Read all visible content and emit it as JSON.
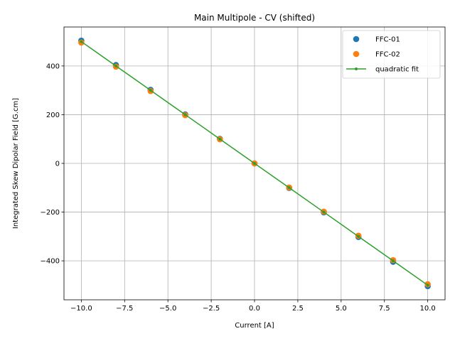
{
  "chart_data": {
    "type": "scatter",
    "title": "Main Multipole - CV (shifted)",
    "xlabel": "Current [A]",
    "ylabel": "Integrated Skew Dipolar Field [G.cm]",
    "xlim": [
      -11.0,
      11.0
    ],
    "ylim": [
      -560,
      560
    ],
    "xticks": [
      -10.0,
      -7.5,
      -5.0,
      -2.5,
      0.0,
      2.5,
      5.0,
      7.5,
      10.0
    ],
    "xtick_labels": [
      "−10.0",
      "−7.5",
      "−5.0",
      "−2.5",
      "0.0",
      "2.5",
      "5.0",
      "7.5",
      "10.0"
    ],
    "yticks": [
      -400,
      -200,
      0,
      200,
      400
    ],
    "ytick_labels": [
      "−400",
      "−200",
      "0",
      "200",
      "400"
    ],
    "grid": true,
    "legend_position": "top-right",
    "series": [
      {
        "name": "FFC-01",
        "kind": "markers",
        "color": "#1f77b4",
        "x": [
          -10,
          -8,
          -6,
          -4,
          -2,
          0,
          2,
          4,
          6,
          8,
          10
        ],
        "y": [
          504,
          404,
          302,
          201,
          101,
          0,
          -101,
          -201,
          -302,
          -404,
          -504
        ]
      },
      {
        "name": "FFC-02",
        "kind": "markers",
        "color": "#ff7f0e",
        "x": [
          -10,
          -8,
          -6,
          -4,
          -2,
          0,
          2,
          4,
          6,
          8,
          10
        ],
        "y": [
          496,
          397,
          297,
          198,
          99,
          0,
          -99,
          -198,
          -297,
          -397,
          -496
        ]
      },
      {
        "name": "quadratic fit",
        "kind": "line",
        "color": "#2ca02c",
        "x": [
          -10,
          -8,
          -6,
          -4,
          -2,
          0,
          2,
          4,
          6,
          8,
          10
        ],
        "y": [
          500,
          400,
          300,
          200,
          100,
          0,
          -100,
          -200,
          -300,
          -400,
          -500
        ]
      }
    ]
  }
}
